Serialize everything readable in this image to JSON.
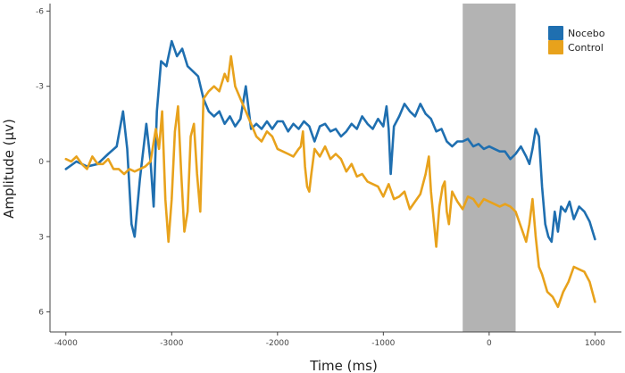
{
  "chart_data": {
    "type": "line",
    "title": "",
    "xlabel": "Time (ms)",
    "ylabel": "Amplitude (µv)",
    "xlim": [
      -4150,
      1250
    ],
    "ylim": [
      -6.3,
      6.8
    ],
    "y_reversed": true,
    "x_ticks": [
      -4000,
      -3000,
      -2000,
      -1000,
      0,
      1000
    ],
    "x_tick_labels": [
      "-4000",
      "-3000",
      "-2000",
      "-1000",
      "0",
      "1000"
    ],
    "y_ticks": [
      -6,
      -3,
      0,
      3,
      6
    ],
    "y_tick_labels": [
      "-6",
      "-3",
      "0",
      "3",
      "6"
    ],
    "grid": false,
    "legend_position": "top-right",
    "shaded_region": {
      "x_start": -250,
      "x_end": 250,
      "color": "#b3b3b3"
    },
    "series": [
      {
        "name": "Nocebo",
        "color": "#1f6fb0",
        "x": [
          -4000,
          -3900,
          -3800,
          -3700,
          -3600,
          -3520,
          -3460,
          -3420,
          -3380,
          -3350,
          -3300,
          -3240,
          -3200,
          -3170,
          -3140,
          -3100,
          -3050,
          -3000,
          -2950,
          -2900,
          -2850,
          -2800,
          -2750,
          -2700,
          -2650,
          -2600,
          -2550,
          -2500,
          -2450,
          -2400,
          -2350,
          -2300,
          -2250,
          -2200,
          -2150,
          -2100,
          -2050,
          -2000,
          -1950,
          -1900,
          -1850,
          -1800,
          -1750,
          -1700,
          -1650,
          -1600,
          -1550,
          -1500,
          -1450,
          -1400,
          -1350,
          -1300,
          -1250,
          -1200,
          -1150,
          -1100,
          -1050,
          -1000,
          -970,
          -950,
          -930,
          -900,
          -850,
          -800,
          -750,
          -700,
          -650,
          -600,
          -550,
          -500,
          -450,
          -400,
          -350,
          -300,
          -250,
          -200,
          -150,
          -100,
          -50,
          0,
          50,
          100,
          150,
          200,
          250,
          300,
          350,
          380,
          410,
          440,
          470,
          500,
          530,
          560,
          590,
          620,
          650,
          680,
          720,
          760,
          800,
          850,
          900,
          950,
          1000
        ],
        "y": [
          0.3,
          0.0,
          0.2,
          0.1,
          -0.3,
          -0.6,
          -2.0,
          -0.5,
          2.5,
          3.0,
          0.7,
          -1.5,
          0.0,
          1.8,
          -2.0,
          -4.0,
          -3.8,
          -4.8,
          -4.2,
          -4.5,
          -3.8,
          -3.6,
          -3.4,
          -2.5,
          -2.0,
          -1.8,
          -2.0,
          -1.5,
          -1.8,
          -1.4,
          -1.7,
          -3.0,
          -1.3,
          -1.5,
          -1.3,
          -1.6,
          -1.3,
          -1.6,
          -1.6,
          -1.2,
          -1.5,
          -1.3,
          -1.6,
          -1.4,
          -0.8,
          -1.4,
          -1.5,
          -1.2,
          -1.3,
          -1.0,
          -1.2,
          -1.5,
          -1.3,
          -1.8,
          -1.5,
          -1.3,
          -1.7,
          -1.4,
          -2.2,
          -1.3,
          0.5,
          -1.4,
          -1.8,
          -2.3,
          -2.0,
          -1.8,
          -2.3,
          -1.9,
          -1.7,
          -1.2,
          -1.3,
          -0.8,
          -0.6,
          -0.8,
          -0.8,
          -0.9,
          -0.6,
          -0.7,
          -0.5,
          -0.6,
          -0.5,
          -0.4,
          -0.4,
          -0.1,
          -0.3,
          -0.6,
          -0.2,
          0.1,
          -0.5,
          -1.3,
          -1.0,
          1.0,
          2.5,
          3.0,
          3.2,
          2.0,
          2.8,
          1.8,
          2.0,
          1.6,
          2.3,
          1.8,
          2.0,
          2.4,
          3.1
        ]
      },
      {
        "name": "Control",
        "color": "#e8a21c",
        "x": [
          -4000,
          -3950,
          -3900,
          -3850,
          -3800,
          -3750,
          -3700,
          -3650,
          -3600,
          -3550,
          -3500,
          -3450,
          -3400,
          -3350,
          -3300,
          -3250,
          -3200,
          -3150,
          -3120,
          -3090,
          -3060,
          -3030,
          -3000,
          -2970,
          -2940,
          -2910,
          -2880,
          -2850,
          -2820,
          -2790,
          -2760,
          -2730,
          -2700,
          -2650,
          -2600,
          -2550,
          -2500,
          -2470,
          -2440,
          -2400,
          -2350,
          -2300,
          -2250,
          -2200,
          -2150,
          -2100,
          -2050,
          -2000,
          -1950,
          -1900,
          -1850,
          -1800,
          -1780,
          -1760,
          -1740,
          -1720,
          -1700,
          -1680,
          -1650,
          -1600,
          -1550,
          -1500,
          -1450,
          -1400,
          -1350,
          -1300,
          -1250,
          -1200,
          -1150,
          -1100,
          -1050,
          -1000,
          -950,
          -900,
          -850,
          -800,
          -750,
          -700,
          -650,
          -600,
          -570,
          -550,
          -520,
          -500,
          -470,
          -440,
          -420,
          -400,
          -380,
          -350,
          -300,
          -250,
          -200,
          -150,
          -100,
          -50,
          0,
          50,
          100,
          150,
          200,
          250,
          300,
          350,
          380,
          410,
          440,
          470,
          500,
          550,
          600,
          650,
          700,
          750,
          800,
          850,
          900,
          950,
          1000
        ],
        "y": [
          -0.1,
          0.0,
          -0.2,
          0.1,
          0.3,
          -0.2,
          0.1,
          0.1,
          -0.1,
          0.3,
          0.3,
          0.5,
          0.3,
          0.4,
          0.3,
          0.2,
          0.0,
          -1.3,
          -0.5,
          -2.0,
          1.5,
          3.2,
          1.5,
          -1.2,
          -2.2,
          0.5,
          2.8,
          2.0,
          -1.0,
          -1.5,
          0.5,
          2.0,
          -2.5,
          -2.8,
          -3.0,
          -2.8,
          -3.5,
          -3.2,
          -4.2,
          -3.0,
          -2.5,
          -2.0,
          -1.5,
          -1.0,
          -0.8,
          -1.2,
          -1.0,
          -0.5,
          -0.4,
          -0.3,
          -0.2,
          -0.5,
          -0.6,
          -1.2,
          0.2,
          1.0,
          1.2,
          0.5,
          -0.5,
          -0.2,
          -0.6,
          -0.1,
          -0.3,
          -0.1,
          0.4,
          0.1,
          0.6,
          0.5,
          0.8,
          0.9,
          1.0,
          1.4,
          0.9,
          1.5,
          1.4,
          1.2,
          1.9,
          1.6,
          1.3,
          0.5,
          -0.2,
          1.2,
          2.5,
          3.4,
          1.8,
          1.0,
          0.8,
          2.0,
          2.5,
          1.2,
          1.6,
          1.9,
          1.4,
          1.5,
          1.8,
          1.5,
          1.6,
          1.7,
          1.8,
          1.7,
          1.8,
          2.0,
          2.6,
          3.2,
          2.5,
          1.5,
          3.0,
          4.2,
          4.5,
          5.2,
          5.4,
          5.8,
          5.2,
          4.8,
          4.2,
          4.3,
          4.4,
          4.8,
          5.6
        ]
      }
    ]
  }
}
